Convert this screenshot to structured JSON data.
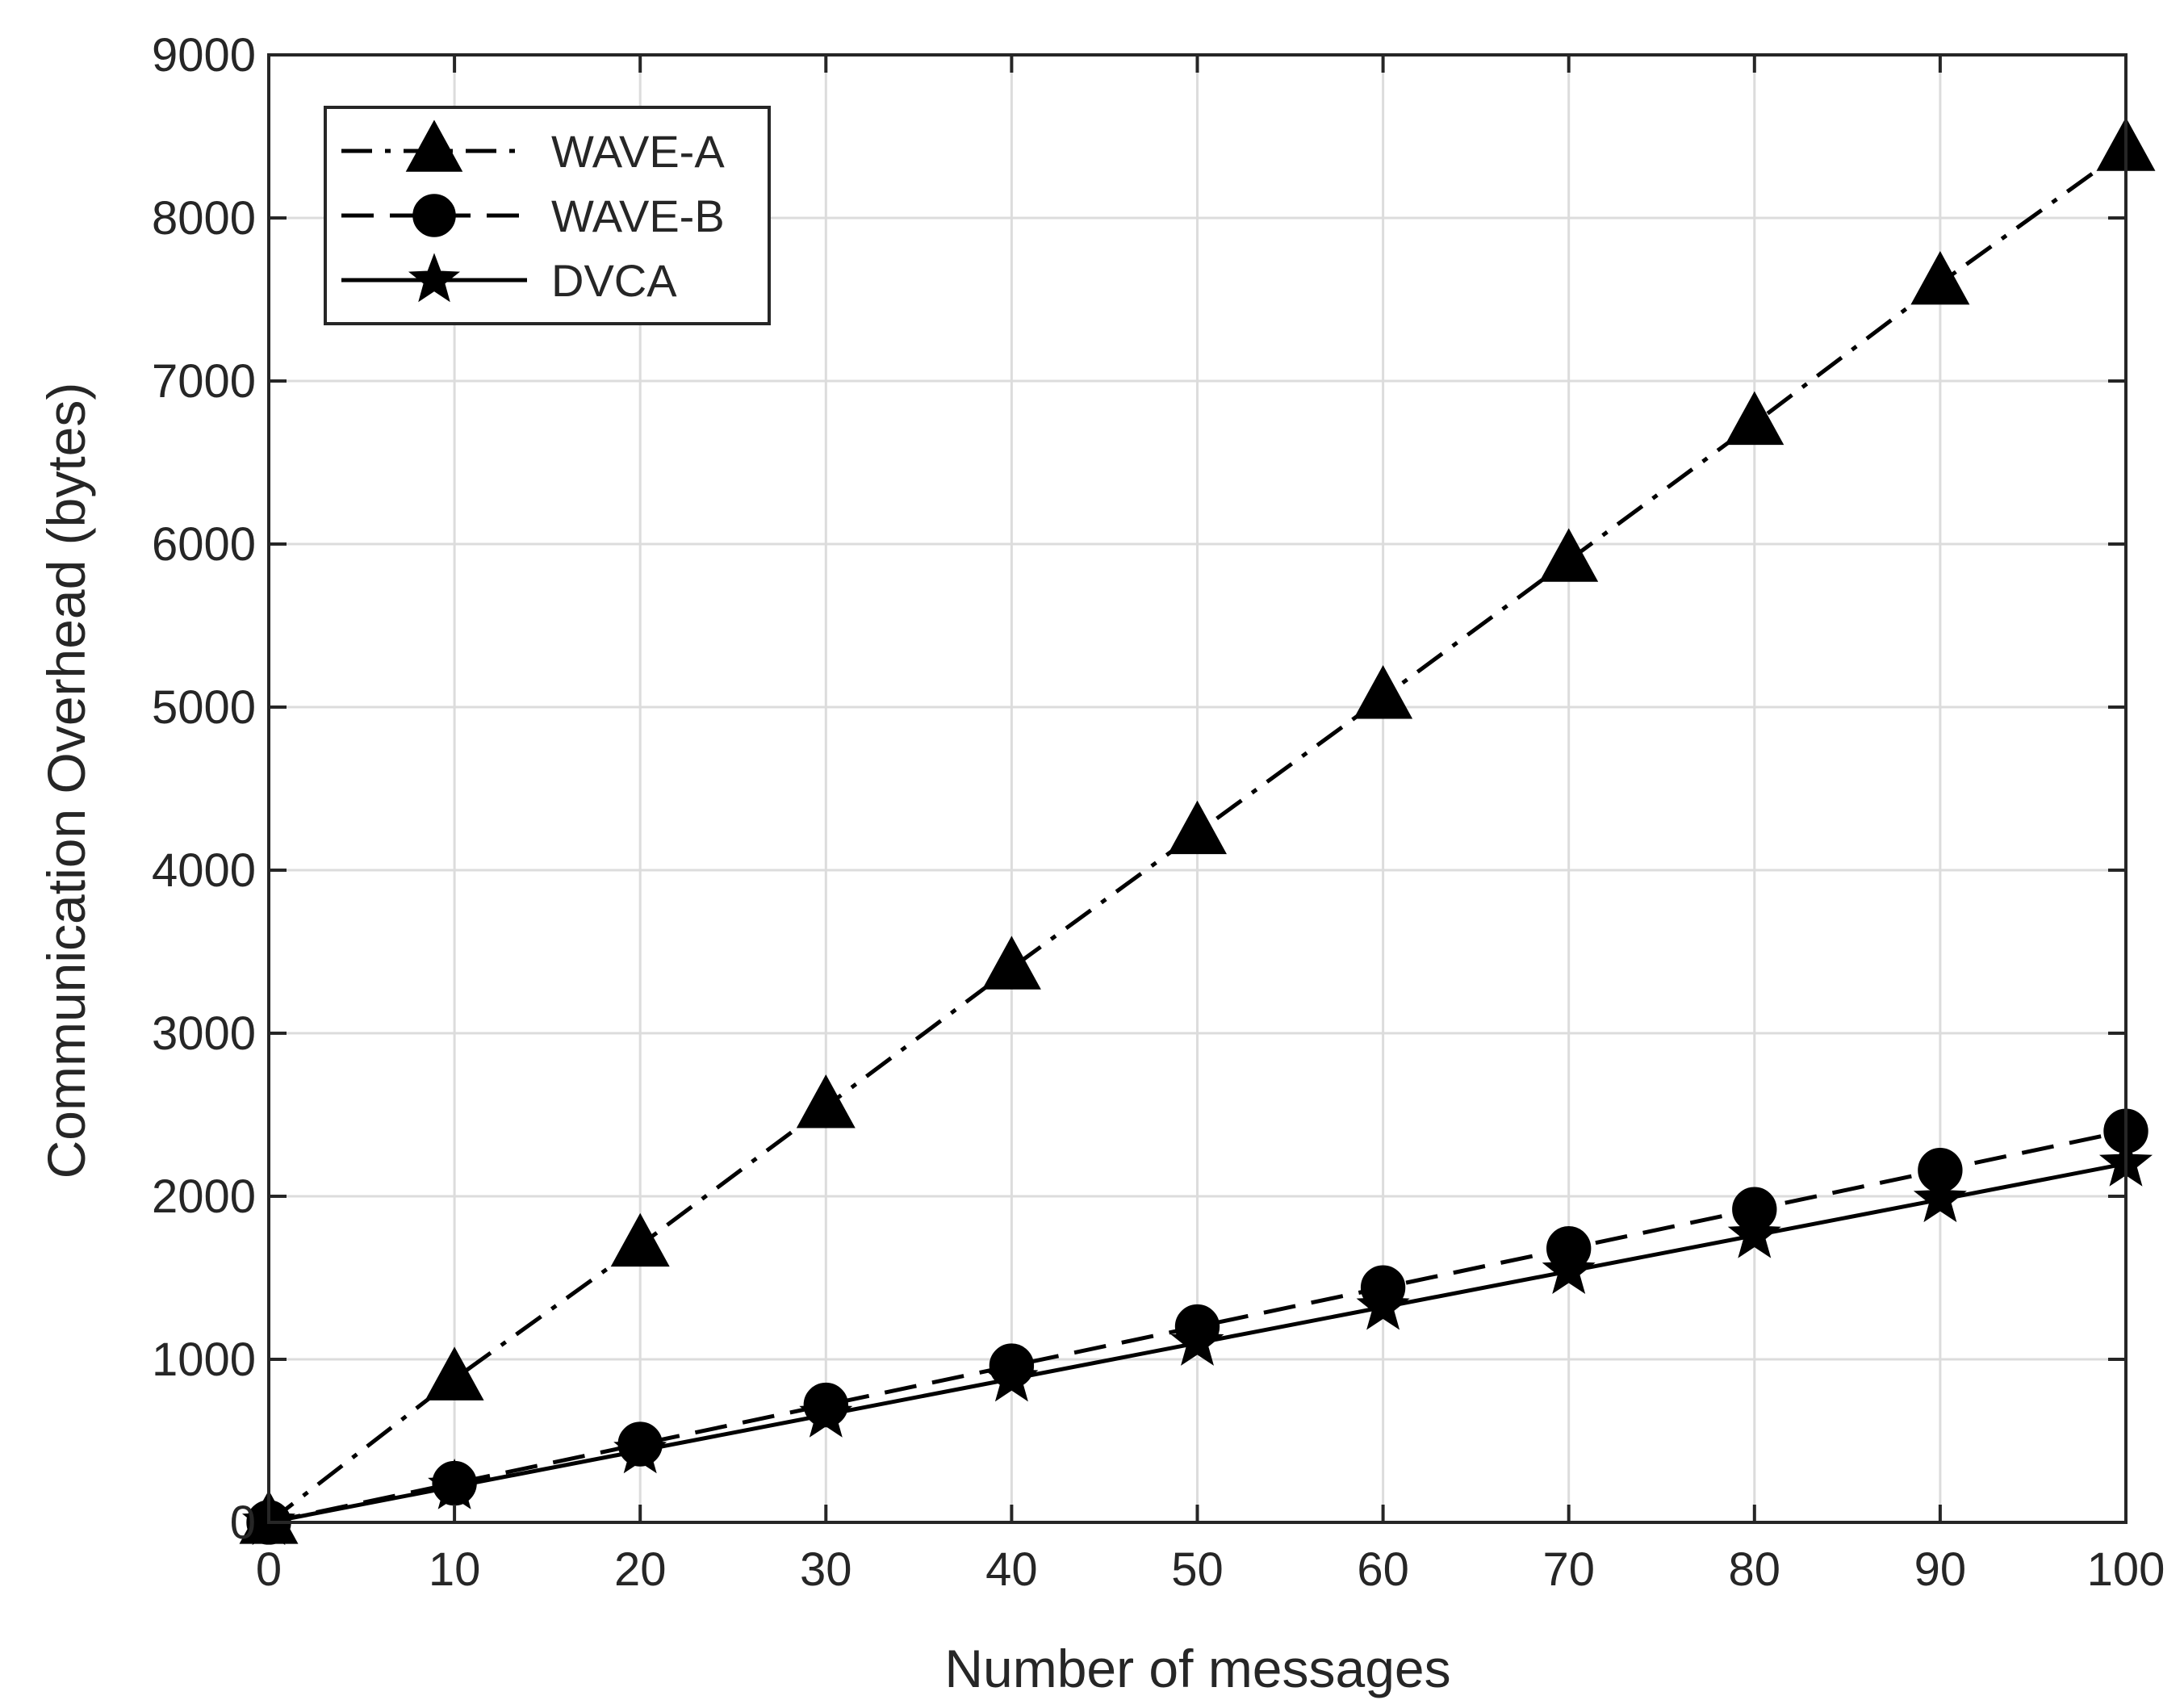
{
  "chart_data": {
    "type": "line",
    "title": "",
    "xlabel": "Number of messages",
    "ylabel": "Communication Overhead (bytes)",
    "xlim": [
      0,
      100
    ],
    "ylim": [
      0,
      9000
    ],
    "x_ticks": [
      0,
      10,
      20,
      30,
      40,
      50,
      60,
      70,
      80,
      90,
      100
    ],
    "y_ticks": [
      0,
      1000,
      2000,
      3000,
      4000,
      5000,
      6000,
      7000,
      8000,
      9000
    ],
    "grid": true,
    "legend_position": "top-left",
    "x": [
      0,
      10,
      20,
      30,
      40,
      50,
      60,
      70,
      80,
      90,
      100
    ],
    "series": [
      {
        "name": "WAVE-A",
        "line_style": "dash-dot",
        "marker": "triangle",
        "values": [
          0,
          880,
          1700,
          2550,
          3400,
          4230,
          5060,
          5900,
          6740,
          7600,
          8420
        ]
      },
      {
        "name": "WAVE-B",
        "line_style": "dashed",
        "marker": "circle",
        "values": [
          0,
          240,
          480,
          720,
          960,
          1200,
          1440,
          1680,
          1920,
          2160,
          2400
        ]
      },
      {
        "name": "DVCA",
        "line_style": "solid",
        "marker": "star",
        "values": [
          0,
          220,
          440,
          660,
          880,
          1100,
          1320,
          1540,
          1760,
          1980,
          2200
        ]
      }
    ],
    "colors": {
      "series": "#000000",
      "grid": "#dcdcdc",
      "axis": "#262626",
      "text": "#262626"
    }
  }
}
